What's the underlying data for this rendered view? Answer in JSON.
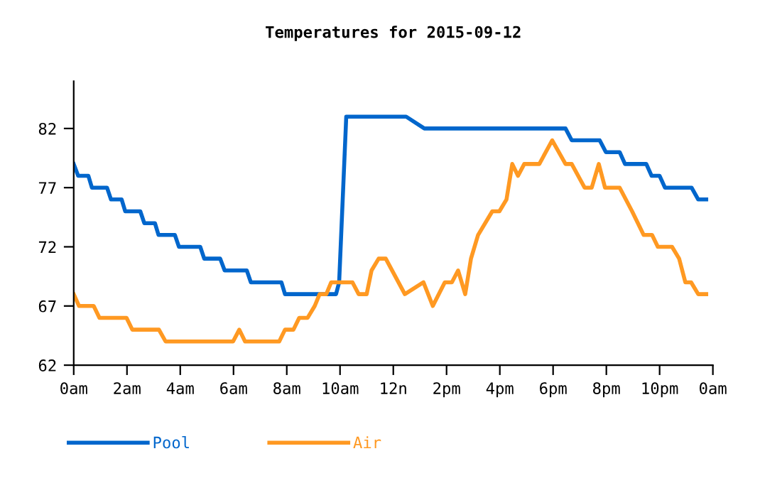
{
  "chart_data": {
    "type": "line",
    "title": "Temperatures for 2015-09-12",
    "xlim": [
      "2015-09-12T00:00",
      "2015-09-13T00:00"
    ],
    "ylim": [
      62,
      86
    ],
    "xticks": [
      {
        "value": "2015-09-12T00:00",
        "label": "0am"
      },
      {
        "value": "2015-09-12T02:00",
        "label": "2am"
      },
      {
        "value": "2015-09-12T04:00",
        "label": "4am"
      },
      {
        "value": "2015-09-12T06:00",
        "label": "6am"
      },
      {
        "value": "2015-09-12T08:00",
        "label": "8am"
      },
      {
        "value": "2015-09-12T10:00",
        "label": "10am"
      },
      {
        "value": "2015-09-12T12:00",
        "label": "12n"
      },
      {
        "value": "2015-09-12T14:00",
        "label": "2pm"
      },
      {
        "value": "2015-09-12T16:00",
        "label": "4pm"
      },
      {
        "value": "2015-09-12T18:00",
        "label": "6pm"
      },
      {
        "value": "2015-09-12T20:00",
        "label": "8pm"
      },
      {
        "value": "2015-09-12T22:00",
        "label": "10pm"
      },
      {
        "value": "2015-09-13T00:00",
        "label": "0am"
      }
    ],
    "yticks": [
      62,
      67,
      72,
      77,
      82
    ],
    "grid": false,
    "legend": "bottom",
    "marker": "none",
    "line_style": "solid",
    "series": [
      {
        "name": "Pool",
        "color": "#0066cc",
        "x": [
          "2015-09-12T00:00",
          "2015-09-12T00:10",
          "2015-09-12T00:33",
          "2015-09-12T00:41",
          "2015-09-12T01:15",
          "2015-09-12T01:24",
          "2015-09-12T01:48",
          "2015-09-12T01:56",
          "2015-09-12T02:30",
          "2015-09-12T02:39",
          "2015-09-12T03:03",
          "2015-09-12T03:11",
          "2015-09-12T03:48",
          "2015-09-12T03:57",
          "2015-09-12T04:45",
          "2015-09-12T04:54",
          "2015-09-12T05:30",
          "2015-09-12T05:40",
          "2015-09-12T06:30",
          "2015-09-12T06:39",
          "2015-09-12T07:48",
          "2015-09-12T07:56",
          "2015-09-12T09:51",
          "2015-09-12T09:58",
          "2015-09-12T10:14",
          "2015-09-12T12:29",
          "2015-09-12T13:10",
          "2015-09-12T18:28",
          "2015-09-12T18:42",
          "2015-09-12T19:45",
          "2015-09-12T19:59",
          "2015-09-12T20:30",
          "2015-09-12T20:42",
          "2015-09-12T21:30",
          "2015-09-12T21:42",
          "2015-09-12T22:00",
          "2015-09-12T22:12",
          "2015-09-12T23:12",
          "2015-09-12T23:27",
          "2015-09-12T23:45"
        ],
        "values": [
          79,
          78,
          78,
          77,
          77,
          76,
          76,
          75,
          75,
          74,
          74,
          73,
          73,
          72,
          72,
          71,
          71,
          70,
          70,
          69,
          69,
          68,
          68,
          69,
          83,
          83,
          82,
          82,
          81,
          81,
          80,
          80,
          79,
          79,
          78,
          78,
          77,
          77,
          76,
          76
        ]
      },
      {
        "name": "Air",
        "color": "#ff9922",
        "x": [
          "2015-09-12T00:00",
          "2015-09-12T00:12",
          "2015-09-12T00:45",
          "2015-09-12T00:58",
          "2015-09-12T01:59",
          "2015-09-12T02:12",
          "2015-09-12T03:12",
          "2015-09-12T03:27",
          "2015-09-12T05:59",
          "2015-09-12T06:13",
          "2015-09-12T06:26",
          "2015-09-12T07:43",
          "2015-09-12T07:56",
          "2015-09-12T08:15",
          "2015-09-12T08:28",
          "2015-09-12T08:47",
          "2015-09-12T09:03",
          "2015-09-12T09:14",
          "2015-09-12T09:29",
          "2015-09-12T09:40",
          "2015-09-12T10:28",
          "2015-09-12T10:42",
          "2015-09-12T11:00",
          "2015-09-12T11:11",
          "2015-09-12T11:27",
          "2015-09-12T11:43",
          "2015-09-12T12:26",
          "2015-09-12T13:08",
          "2015-09-12T13:29",
          "2015-09-12T13:56",
          "2015-09-12T14:12",
          "2015-09-12T14:26",
          "2015-09-12T14:42",
          "2015-09-12T14:55",
          "2015-09-12T15:11",
          "2015-09-12T15:43",
          "2015-09-12T15:59",
          "2015-09-12T16:15",
          "2015-09-12T16:28",
          "2015-09-12T16:41",
          "2015-09-12T16:55",
          "2015-09-12T17:29",
          "2015-09-12T17:58",
          "2015-09-12T18:28",
          "2015-09-12T18:42",
          "2015-09-12T19:11",
          "2015-09-12T19:27",
          "2015-09-12T19:43",
          "2015-09-12T19:57",
          "2015-09-12T20:30",
          "2015-09-12T20:58",
          "2015-09-12T21:24",
          "2015-09-12T21:43",
          "2015-09-12T21:56",
          "2015-09-12T22:28",
          "2015-09-12T22:44",
          "2015-09-12T22:58",
          "2015-09-12T23:11",
          "2015-09-12T23:27",
          "2015-09-12T23:45"
        ],
        "values": [
          68,
          67,
          67,
          66,
          66,
          65,
          65,
          64,
          64,
          65,
          64,
          64,
          65,
          65,
          66,
          66,
          67,
          68,
          68,
          69,
          69,
          68,
          68,
          70,
          71,
          71,
          68,
          69,
          67,
          69,
          69,
          70,
          68,
          71,
          73,
          75,
          75,
          76,
          79,
          78,
          79,
          79,
          81,
          79,
          79,
          77,
          77,
          79,
          77,
          77,
          75,
          73,
          73,
          72,
          72,
          71,
          69,
          69,
          68,
          68
        ]
      }
    ]
  }
}
